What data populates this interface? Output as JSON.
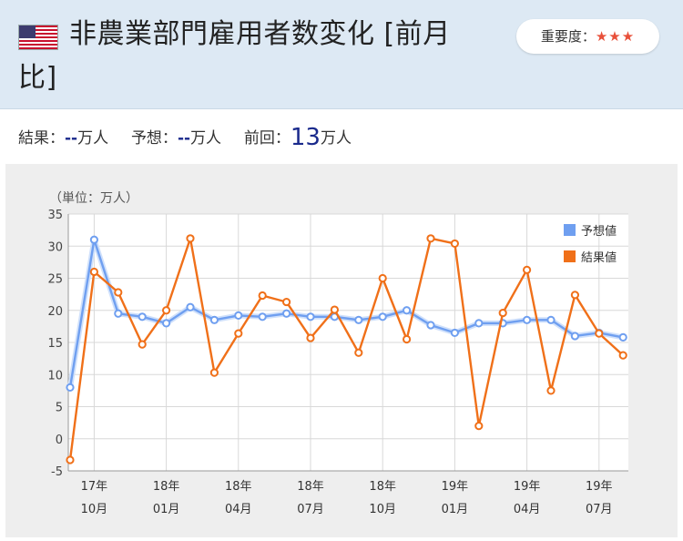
{
  "header": {
    "title_line1": "非農業部門雇用者数変化 [前月",
    "title_line2": "比]",
    "importance_label": "重要度：",
    "importance_stars": "★★★"
  },
  "results": {
    "result_label": "結果：",
    "result_value": "--",
    "result_unit": "万人",
    "forecast_label": "予想：",
    "forecast_value": "--",
    "forecast_unit": "万人",
    "previous_label": "前回：",
    "previous_value": "13",
    "previous_unit": "万人"
  },
  "chart_data": {
    "type": "line",
    "unit_label": "（単位：万人）",
    "ylim": [
      -5,
      35
    ],
    "yticks": [
      -5,
      0,
      5,
      10,
      15,
      20,
      25,
      30,
      35
    ],
    "x_tick_labels": [
      {
        "year": "17年",
        "month": "10月"
      },
      {
        "year": "18年",
        "month": "01月"
      },
      {
        "year": "18年",
        "month": "04月"
      },
      {
        "year": "18年",
        "month": "07月"
      },
      {
        "year": "18年",
        "month": "10月"
      },
      {
        "year": "19年",
        "month": "01月"
      },
      {
        "year": "19年",
        "month": "04月"
      },
      {
        "year": "19年",
        "month": "07月"
      }
    ],
    "grid": true,
    "legend_position": "top-right",
    "series": [
      {
        "name": "予想値",
        "color": "#6f9ff0",
        "values": [
          8,
          31,
          19.5,
          19,
          18,
          20.5,
          18.5,
          19.2,
          19,
          19.5,
          19,
          19,
          18.5,
          19,
          20,
          17.7,
          16.5,
          18,
          18,
          18.5,
          18.5,
          16,
          16.5,
          15.8
        ]
      },
      {
        "name": "結果値",
        "color": "#f07019",
        "values": [
          -3.3,
          26,
          22.8,
          14.7,
          20,
          31.2,
          10.3,
          16.4,
          22.3,
          21.3,
          15.7,
          20.1,
          13.4,
          25,
          15.5,
          31.2,
          30.4,
          2,
          19.6,
          26.3,
          7.5,
          22.4,
          16.4,
          13
        ]
      }
    ]
  }
}
